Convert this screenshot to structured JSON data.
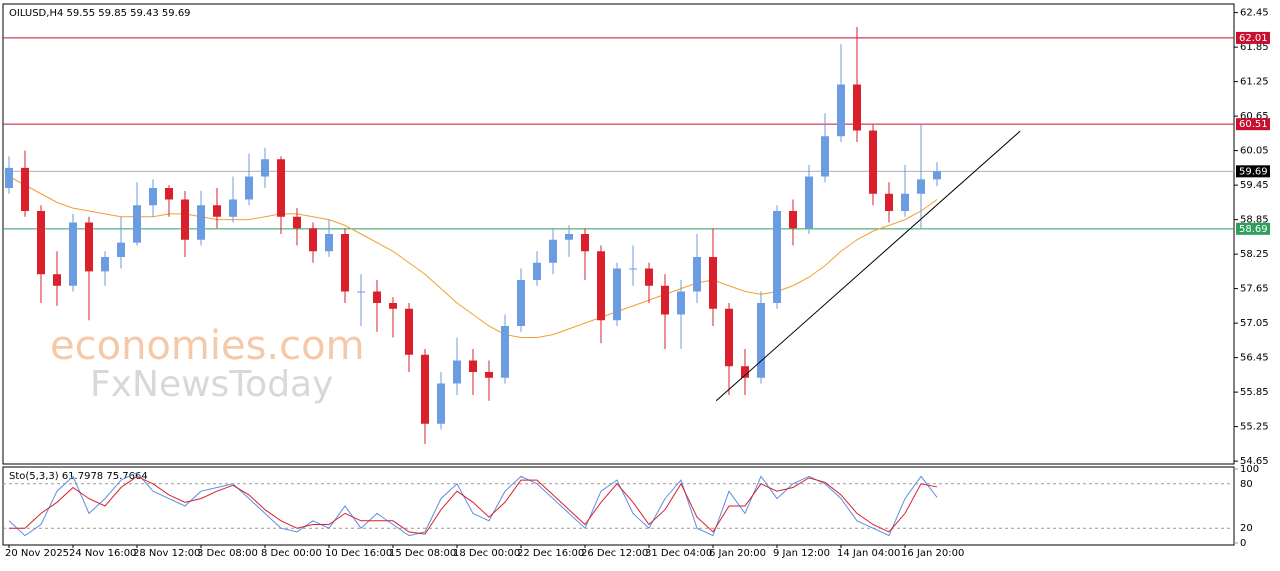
{
  "chart_data": [
    {
      "type": "candlestick",
      "title": "OILUSD,H4  59.55 59.85 59.43 59.69",
      "watermark": [
        "economies.com",
        "FxNewsToday"
      ],
      "up_color": "#6b9be0",
      "down_color": "#d9202c",
      "categories": [
        "20 Nov 2025",
        null,
        null,
        null,
        "24 Nov 16:00",
        null,
        null,
        null,
        "28 Nov 12:00",
        null,
        null,
        null,
        "3 Dec 08:00",
        null,
        null,
        null,
        "8 Dec 00:00",
        null,
        null,
        null,
        "10 Dec 16:00",
        null,
        null,
        null,
        "15 Dec 08:00",
        null,
        null,
        null,
        "18 Dec 00:00",
        null,
        null,
        null,
        "22 Dec 16:00",
        null,
        null,
        null,
        "26 Dec 12:00",
        null,
        null,
        null,
        "31 Dec 04:00",
        null,
        null,
        null,
        "6 Jan 20:00",
        null,
        null,
        null,
        "9 Jan 12:00",
        null,
        null,
        null,
        "14 Jan 04:00",
        null,
        null,
        null,
        "16 Jan 20:00",
        null,
        null
      ],
      "ohlc": [
        [
          59.4,
          59.95,
          59.3,
          59.75
        ],
        [
          59.75,
          60.05,
          58.9,
          59.0
        ],
        [
          59.0,
          59.1,
          57.4,
          57.9
        ],
        [
          57.9,
          58.3,
          57.35,
          57.7
        ],
        [
          57.7,
          58.95,
          57.6,
          58.8
        ],
        [
          58.8,
          58.9,
          57.1,
          57.95
        ],
        [
          57.95,
          58.3,
          57.7,
          58.2
        ],
        [
          58.2,
          58.9,
          58.0,
          58.45
        ],
        [
          58.45,
          59.5,
          58.4,
          59.1
        ],
        [
          59.1,
          59.55,
          58.9,
          59.4
        ],
        [
          59.4,
          59.45,
          58.9,
          59.2
        ],
        [
          59.2,
          59.35,
          58.2,
          58.5
        ],
        [
          58.5,
          59.35,
          58.4,
          59.1
        ],
        [
          59.1,
          59.4,
          58.7,
          58.9
        ],
        [
          58.9,
          59.6,
          58.8,
          59.2
        ],
        [
          59.2,
          60.0,
          59.1,
          59.6
        ],
        [
          59.6,
          60.1,
          59.4,
          59.9
        ],
        [
          59.9,
          59.95,
          58.6,
          58.9
        ],
        [
          58.9,
          59.05,
          58.4,
          58.7
        ],
        [
          58.7,
          58.8,
          58.1,
          58.3
        ],
        [
          58.3,
          58.85,
          58.2,
          58.6
        ],
        [
          58.6,
          58.7,
          57.4,
          57.6
        ],
        [
          57.6,
          57.9,
          57.0,
          57.6
        ],
        [
          57.6,
          57.8,
          56.9,
          57.4
        ],
        [
          57.4,
          57.5,
          56.8,
          57.3
        ],
        [
          57.3,
          57.4,
          56.2,
          56.5
        ],
        [
          56.5,
          56.6,
          54.95,
          55.3
        ],
        [
          55.3,
          56.2,
          55.2,
          56.0
        ],
        [
          56.0,
          56.8,
          55.8,
          56.4
        ],
        [
          56.4,
          56.6,
          55.8,
          56.2
        ],
        [
          56.2,
          56.4,
          55.7,
          56.1
        ],
        [
          56.1,
          57.2,
          56.0,
          57.0
        ],
        [
          57.0,
          58.0,
          56.9,
          57.8
        ],
        [
          57.8,
          58.3,
          57.7,
          58.1
        ],
        [
          58.1,
          58.7,
          57.9,
          58.5
        ],
        [
          58.5,
          58.75,
          58.2,
          58.6
        ],
        [
          58.6,
          58.7,
          57.8,
          58.3
        ],
        [
          58.3,
          58.4,
          56.7,
          57.1
        ],
        [
          57.1,
          58.1,
          57.0,
          58.0
        ],
        [
          58.0,
          58.4,
          57.7,
          58.0
        ],
        [
          58.0,
          58.1,
          57.4,
          57.7
        ],
        [
          57.7,
          57.9,
          56.6,
          57.2
        ],
        [
          57.2,
          57.8,
          56.6,
          57.6
        ],
        [
          57.6,
          58.6,
          57.4,
          58.2
        ],
        [
          58.2,
          58.7,
          57.0,
          57.3
        ],
        [
          57.3,
          57.4,
          55.8,
          56.3
        ],
        [
          56.3,
          56.6,
          55.8,
          56.1
        ],
        [
          56.1,
          57.6,
          56.0,
          57.4
        ],
        [
          57.4,
          59.1,
          57.3,
          59.0
        ],
        [
          59.0,
          59.2,
          58.4,
          58.7
        ],
        [
          58.7,
          59.8,
          58.6,
          59.6
        ],
        [
          59.6,
          60.7,
          59.5,
          60.3
        ],
        [
          60.3,
          61.9,
          60.2,
          61.2
        ],
        [
          61.2,
          62.2,
          60.2,
          60.4
        ],
        [
          60.4,
          60.5,
          59.1,
          59.3
        ],
        [
          59.3,
          59.5,
          58.8,
          59.0
        ],
        [
          59.0,
          59.8,
          58.9,
          59.3
        ],
        [
          59.3,
          60.5,
          58.7,
          59.55
        ],
        [
          59.55,
          59.85,
          59.43,
          59.69
        ]
      ],
      "moving_average": {
        "color": "#f0a030",
        "values": [
          59.6,
          59.45,
          59.3,
          59.15,
          59.05,
          59.0,
          58.95,
          58.9,
          58.9,
          58.9,
          58.95,
          58.95,
          58.9,
          58.85,
          58.85,
          58.85,
          58.9,
          58.95,
          58.95,
          58.9,
          58.85,
          58.75,
          58.6,
          58.45,
          58.3,
          58.1,
          57.9,
          57.65,
          57.4,
          57.2,
          57.0,
          56.85,
          56.8,
          56.8,
          56.85,
          56.95,
          57.05,
          57.15,
          57.25,
          57.35,
          57.45,
          57.55,
          57.65,
          57.75,
          57.8,
          57.7,
          57.6,
          57.55,
          57.6,
          57.7,
          57.85,
          58.05,
          58.3,
          58.5,
          58.65,
          58.75,
          58.85,
          59.0,
          59.2
        ]
      },
      "trendline": {
        "color": "#000000",
        "x": [
          44.2,
          63.2
        ],
        "y": [
          55.7,
          60.39
        ]
      },
      "levels": [
        {
          "value": 62.01,
          "color": "#c8102e",
          "label_color": "#c8102e"
        },
        {
          "value": 60.51,
          "color": "#c8102e",
          "label_color": "#c8102e"
        },
        {
          "value": 59.69,
          "color": "#b0b0b0",
          "label_color": "#000000"
        },
        {
          "value": 58.69,
          "color": "#2e9e5a",
          "label_color": "#2e9e5a"
        }
      ],
      "ylim": [
        54.6,
        62.6
      ],
      "yticks": [
        62.45,
        61.85,
        61.25,
        60.65,
        60.05,
        59.45,
        58.85,
        58.25,
        57.65,
        57.05,
        56.45,
        55.85,
        55.25,
        54.65
      ]
    },
    {
      "type": "line",
      "title": "Sto(5,3,3) 61.7978 75.7664",
      "series": [
        {
          "color": "#5b8fe0",
          "values": [
            30,
            10,
            25,
            70,
            90,
            40,
            60,
            85,
            95,
            70,
            60,
            50,
            70,
            75,
            80,
            60,
            40,
            20,
            15,
            30,
            20,
            50,
            20,
            40,
            25,
            10,
            15,
            60,
            80,
            40,
            30,
            70,
            90,
            80,
            60,
            40,
            20,
            70,
            85,
            40,
            20,
            60,
            85,
            20,
            10,
            70,
            40,
            90,
            60,
            80,
            90,
            80,
            60,
            30,
            20,
            10,
            60,
            90,
            61.7978
          ]
        },
        {
          "color": "#d9202c",
          "values": [
            20,
            20,
            40,
            55,
            75,
            60,
            50,
            75,
            90,
            80,
            65,
            55,
            60,
            70,
            78,
            65,
            45,
            30,
            20,
            25,
            25,
            40,
            30,
            30,
            30,
            15,
            12,
            45,
            70,
            55,
            35,
            55,
            85,
            85,
            65,
            45,
            25,
            55,
            80,
            55,
            25,
            45,
            80,
            35,
            15,
            50,
            50,
            80,
            70,
            75,
            88,
            82,
            65,
            40,
            25,
            15,
            40,
            80,
            75.7664
          ]
        }
      ],
      "ylim": [
        0,
        100
      ],
      "yticks": [
        100,
        80,
        20,
        0
      ]
    }
  ]
}
